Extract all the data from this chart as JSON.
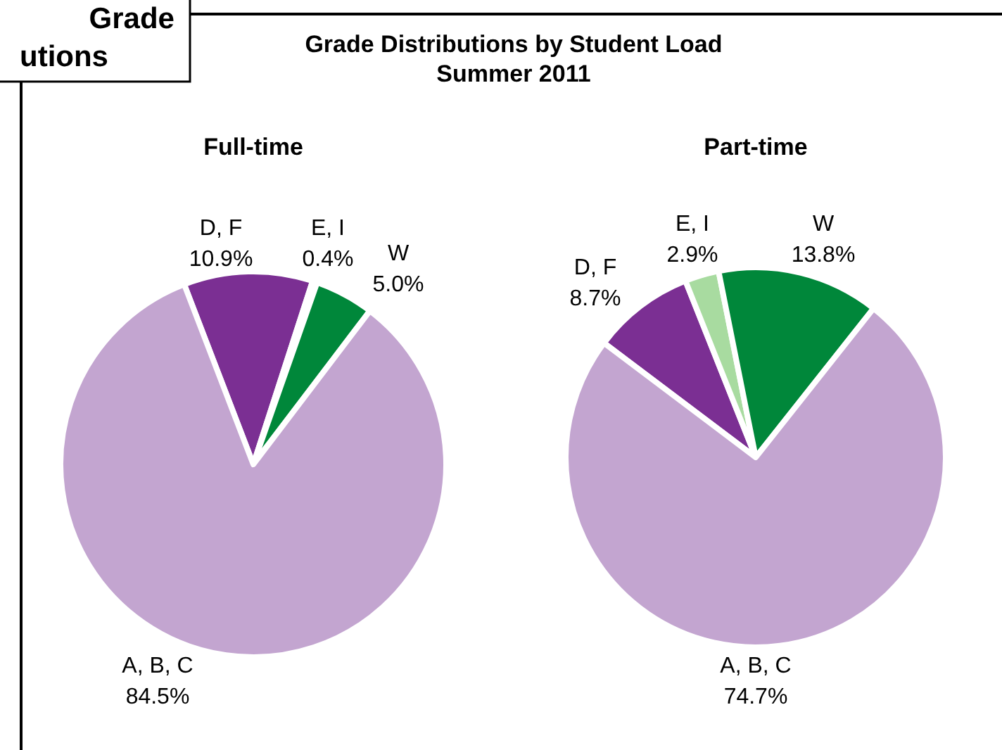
{
  "chart_data": [
    {
      "type": "pie",
      "title": "Full-time",
      "categories": [
        "D, F",
        "E, I",
        "W",
        "A, B, C"
      ],
      "values": [
        10.9,
        0.4,
        5.0,
        84.5
      ],
      "value_labels": [
        "10.9%",
        "0.4%",
        "5.0%",
        "84.5%"
      ],
      "colors": [
        "#7b2f93",
        "#a8dba0",
        "#00873a",
        "#c3a5d0"
      ],
      "annotations": [
        "Grade",
        "utions",
        "Grade Distributions by Student Load",
        "Summer 2011"
      ]
    },
    {
      "type": "pie",
      "title": "Part-time",
      "categories": [
        "D, F",
        "E, I",
        "W",
        "A, B, C"
      ],
      "values": [
        8.7,
        2.9,
        13.8,
        74.7
      ],
      "value_labels": [
        "8.7%",
        "2.9%",
        "13.8%",
        "74.7%"
      ],
      "colors": [
        "#7b2f93",
        "#a8dba0",
        "#00873a",
        "#c3a5d0"
      ]
    }
  ]
}
